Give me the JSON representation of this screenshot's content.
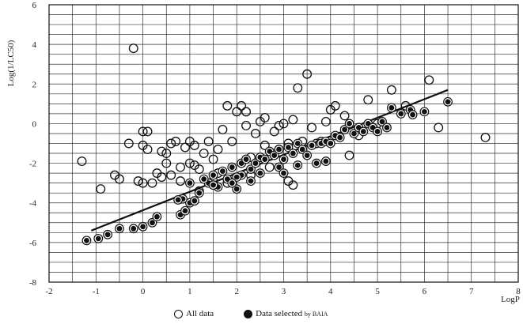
{
  "chart_data": {
    "type": "scatter",
    "xlabel": "LogP",
    "ylabel": "Log(1/LC50)",
    "xlim": [
      -2,
      8
    ],
    "ylim": [
      -8,
      6
    ],
    "xticks": [
      "-2",
      "-1",
      "0",
      "1",
      "2",
      "3",
      "4",
      "5",
      "6",
      "7",
      "8"
    ],
    "yticks": [
      "6",
      "4",
      "2",
      "0",
      "-2",
      "-4",
      "-6",
      "-8"
    ],
    "grid": true,
    "legend": {
      "placement": "bottom",
      "all_label": "All data",
      "selected_label": "Data selected",
      "selected_suffix": "by BAIA"
    },
    "series": [
      {
        "name": "All data",
        "marker": "open-circle",
        "points": [
          [
            -1.3,
            -1.9
          ],
          [
            -0.2,
            3.8
          ],
          [
            -0.9,
            -3.3
          ],
          [
            -0.6,
            -2.6
          ],
          [
            -0.5,
            -2.8
          ],
          [
            -0.3,
            -1.0
          ],
          [
            0.0,
            -0.4
          ],
          [
            0.1,
            -0.4
          ],
          [
            0.0,
            -1.1
          ],
          [
            0.1,
            -1.3
          ],
          [
            -0.1,
            -2.9
          ],
          [
            0.0,
            -3.0
          ],
          [
            0.2,
            -3.0
          ],
          [
            0.3,
            -2.5
          ],
          [
            0.4,
            -1.4
          ],
          [
            0.5,
            -1.5
          ],
          [
            0.5,
            -2.0
          ],
          [
            0.6,
            -1.0
          ],
          [
            0.7,
            -0.9
          ],
          [
            0.6,
            -2.6
          ],
          [
            0.8,
            -2.2
          ],
          [
            0.9,
            -1.2
          ],
          [
            1.0,
            -0.9
          ],
          [
            1.1,
            -1.1
          ],
          [
            1.1,
            -2.1
          ],
          [
            1.2,
            -2.3
          ],
          [
            1.3,
            -1.5
          ],
          [
            1.4,
            -0.9
          ],
          [
            1.5,
            -1.8
          ],
          [
            1.6,
            -2.5
          ],
          [
            1.7,
            -0.3
          ],
          [
            1.8,
            0.9
          ],
          [
            1.9,
            -0.9
          ],
          [
            2.0,
            0.6
          ],
          [
            2.1,
            0.9
          ],
          [
            2.2,
            0.6
          ],
          [
            2.2,
            -0.1
          ],
          [
            2.4,
            -0.5
          ],
          [
            2.5,
            0.1
          ],
          [
            2.6,
            0.3
          ],
          [
            2.7,
            -2.2
          ],
          [
            2.8,
            -0.4
          ],
          [
            2.9,
            -1.3
          ],
          [
            3.0,
            0.0
          ],
          [
            3.1,
            -1.0
          ],
          [
            3.2,
            0.2
          ],
          [
            3.3,
            1.8
          ],
          [
            3.5,
            2.5
          ],
          [
            3.6,
            -0.2
          ],
          [
            3.7,
            -1.0
          ],
          [
            3.8,
            -0.9
          ],
          [
            3.9,
            0.1
          ],
          [
            4.0,
            0.7
          ],
          [
            4.1,
            0.9
          ],
          [
            4.3,
            0.4
          ],
          [
            4.4,
            -1.6
          ],
          [
            4.6,
            -0.6
          ],
          [
            4.8,
            1.2
          ],
          [
            5.0,
            0.0
          ],
          [
            5.3,
            1.7
          ],
          [
            5.6,
            0.9
          ],
          [
            6.1,
            2.2
          ],
          [
            6.3,
            -0.2
          ],
          [
            7.3,
            -0.7
          ],
          [
            3.1,
            -2.9
          ],
          [
            3.2,
            -3.1
          ],
          [
            2.3,
            -2.6
          ],
          [
            1.8,
            -3.0
          ],
          [
            1.5,
            -2.9
          ],
          [
            1.0,
            -2.0
          ],
          [
            0.4,
            -2.7
          ],
          [
            2.6,
            -1.1
          ],
          [
            3.4,
            -0.9
          ],
          [
            1.2,
            -3.4
          ],
          [
            0.8,
            -2.9
          ],
          [
            2.9,
            -0.1
          ],
          [
            1.6,
            -1.3
          ],
          [
            2.3,
            -1.7
          ]
        ]
      },
      {
        "name": "Data selected by BAIA",
        "marker": "filled-circle",
        "points": [
          [
            -1.2,
            -5.9
          ],
          [
            -0.95,
            -5.8
          ],
          [
            -0.75,
            -5.6
          ],
          [
            -0.5,
            -5.3
          ],
          [
            -0.2,
            -5.3
          ],
          [
            0.0,
            -5.2
          ],
          [
            0.2,
            -5.0
          ],
          [
            0.3,
            -4.7
          ],
          [
            0.8,
            -4.6
          ],
          [
            0.9,
            -4.4
          ],
          [
            1.0,
            -4.0
          ],
          [
            0.85,
            -3.8
          ],
          [
            1.0,
            -3.0
          ],
          [
            1.2,
            -3.5
          ],
          [
            1.4,
            -3.0
          ],
          [
            1.5,
            -2.6
          ],
          [
            1.6,
            -3.2
          ],
          [
            1.8,
            -2.8
          ],
          [
            1.9,
            -2.2
          ],
          [
            2.0,
            -3.3
          ],
          [
            2.1,
            -2.6
          ],
          [
            2.1,
            -2.0
          ],
          [
            2.2,
            -1.8
          ],
          [
            2.3,
            -2.3
          ],
          [
            2.4,
            -2.0
          ],
          [
            2.5,
            -1.7
          ],
          [
            2.6,
            -1.8
          ],
          [
            2.7,
            -1.4
          ],
          [
            2.8,
            -1.6
          ],
          [
            2.9,
            -1.3
          ],
          [
            3.0,
            -1.8
          ],
          [
            3.1,
            -1.2
          ],
          [
            3.2,
            -1.5
          ],
          [
            3.3,
            -1.0
          ],
          [
            3.4,
            -1.3
          ],
          [
            3.5,
            -1.6
          ],
          [
            3.6,
            -1.1
          ],
          [
            3.7,
            -2.0
          ],
          [
            3.8,
            -1.0
          ],
          [
            3.9,
            -0.9
          ],
          [
            4.0,
            -1.0
          ],
          [
            4.1,
            -0.6
          ],
          [
            4.2,
            -0.7
          ],
          [
            4.3,
            -0.3
          ],
          [
            4.4,
            0.0
          ],
          [
            4.5,
            -0.5
          ],
          [
            4.6,
            -0.2
          ],
          [
            4.7,
            -0.4
          ],
          [
            4.8,
            0.0
          ],
          [
            4.9,
            -0.2
          ],
          [
            5.0,
            -0.4
          ],
          [
            5.1,
            0.1
          ],
          [
            5.2,
            -0.2
          ],
          [
            5.3,
            0.8
          ],
          [
            5.5,
            0.5
          ],
          [
            5.7,
            0.7
          ],
          [
            5.75,
            0.45
          ],
          [
            6.0,
            0.6
          ],
          [
            6.5,
            1.1
          ],
          [
            1.7,
            -2.4
          ],
          [
            1.3,
            -2.8
          ],
          [
            2.0,
            -2.7
          ],
          [
            2.5,
            -2.5
          ],
          [
            2.9,
            -2.2
          ],
          [
            3.3,
            -2.1
          ],
          [
            3.9,
            -1.9
          ],
          [
            1.5,
            -3.1
          ],
          [
            1.9,
            -3.0
          ],
          [
            2.3,
            -2.9
          ],
          [
            3.0,
            -2.5
          ],
          [
            1.1,
            -3.9
          ],
          [
            0.75,
            -3.85
          ]
        ]
      }
    ],
    "regression_line": {
      "x": [
        -1.1,
        6.5
      ],
      "y": [
        -5.4,
        1.7
      ]
    }
  }
}
